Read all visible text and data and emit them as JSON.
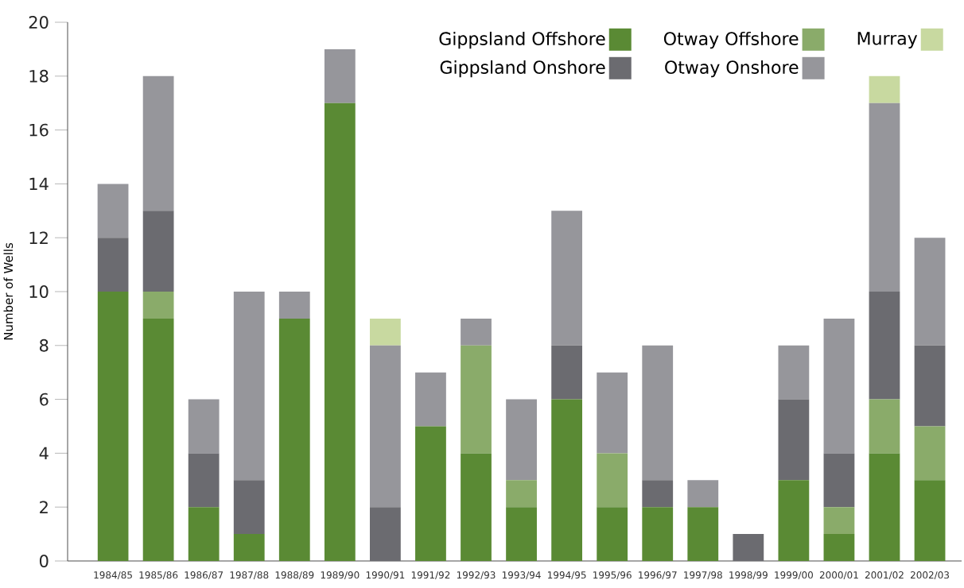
{
  "chart_data": {
    "type": "bar",
    "stacked": true,
    "ylabel": "Number of Wells",
    "ylim": [
      0,
      20
    ],
    "yticks": [
      0,
      2,
      4,
      6,
      8,
      10,
      12,
      14,
      16,
      18,
      20
    ],
    "legend": "top right",
    "categories": [
      "1984/85",
      "1985/86",
      "1986/87",
      "1987/88",
      "1988/89",
      "1989/90",
      "1990/91",
      "1991/92",
      "1992/93",
      "1993/94",
      "1994/95",
      "1995/96",
      "1996/97",
      "1997/98",
      "1998/99",
      "1999/00",
      "2000/01",
      "2001/02",
      "2002/03"
    ],
    "series": [
      {
        "name": "Gippsland Offshore",
        "color": "#5a8a34",
        "values": [
          10,
          9,
          2,
          1,
          9,
          17,
          0,
          5,
          4,
          2,
          6,
          2,
          2,
          2,
          0,
          3,
          1,
          4,
          3
        ]
      },
      {
        "name": "Otway Offshore",
        "color": "#8aab6a",
        "values": [
          0,
          1,
          0,
          0,
          0,
          0,
          0,
          0,
          4,
          1,
          0,
          2,
          0,
          0,
          0,
          0,
          1,
          2,
          2
        ]
      },
      {
        "name": "Gippsland Onshore",
        "color": "#6b6b70",
        "values": [
          2,
          3,
          2,
          2,
          0,
          0,
          2,
          0,
          0,
          0,
          2,
          0,
          1,
          0,
          1,
          3,
          2,
          4,
          3
        ]
      },
      {
        "name": "Otway Onshore",
        "color": "#96969b",
        "values": [
          2,
          5,
          2,
          7,
          1,
          2,
          6,
          2,
          1,
          3,
          5,
          3,
          5,
          1,
          0,
          2,
          5,
          7,
          4
        ]
      },
      {
        "name": "Murray",
        "color": "#c8d9a0",
        "values": [
          0,
          0,
          0,
          0,
          0,
          0,
          1,
          0,
          0,
          0,
          0,
          0,
          0,
          0,
          0,
          0,
          0,
          1,
          0
        ]
      }
    ]
  }
}
